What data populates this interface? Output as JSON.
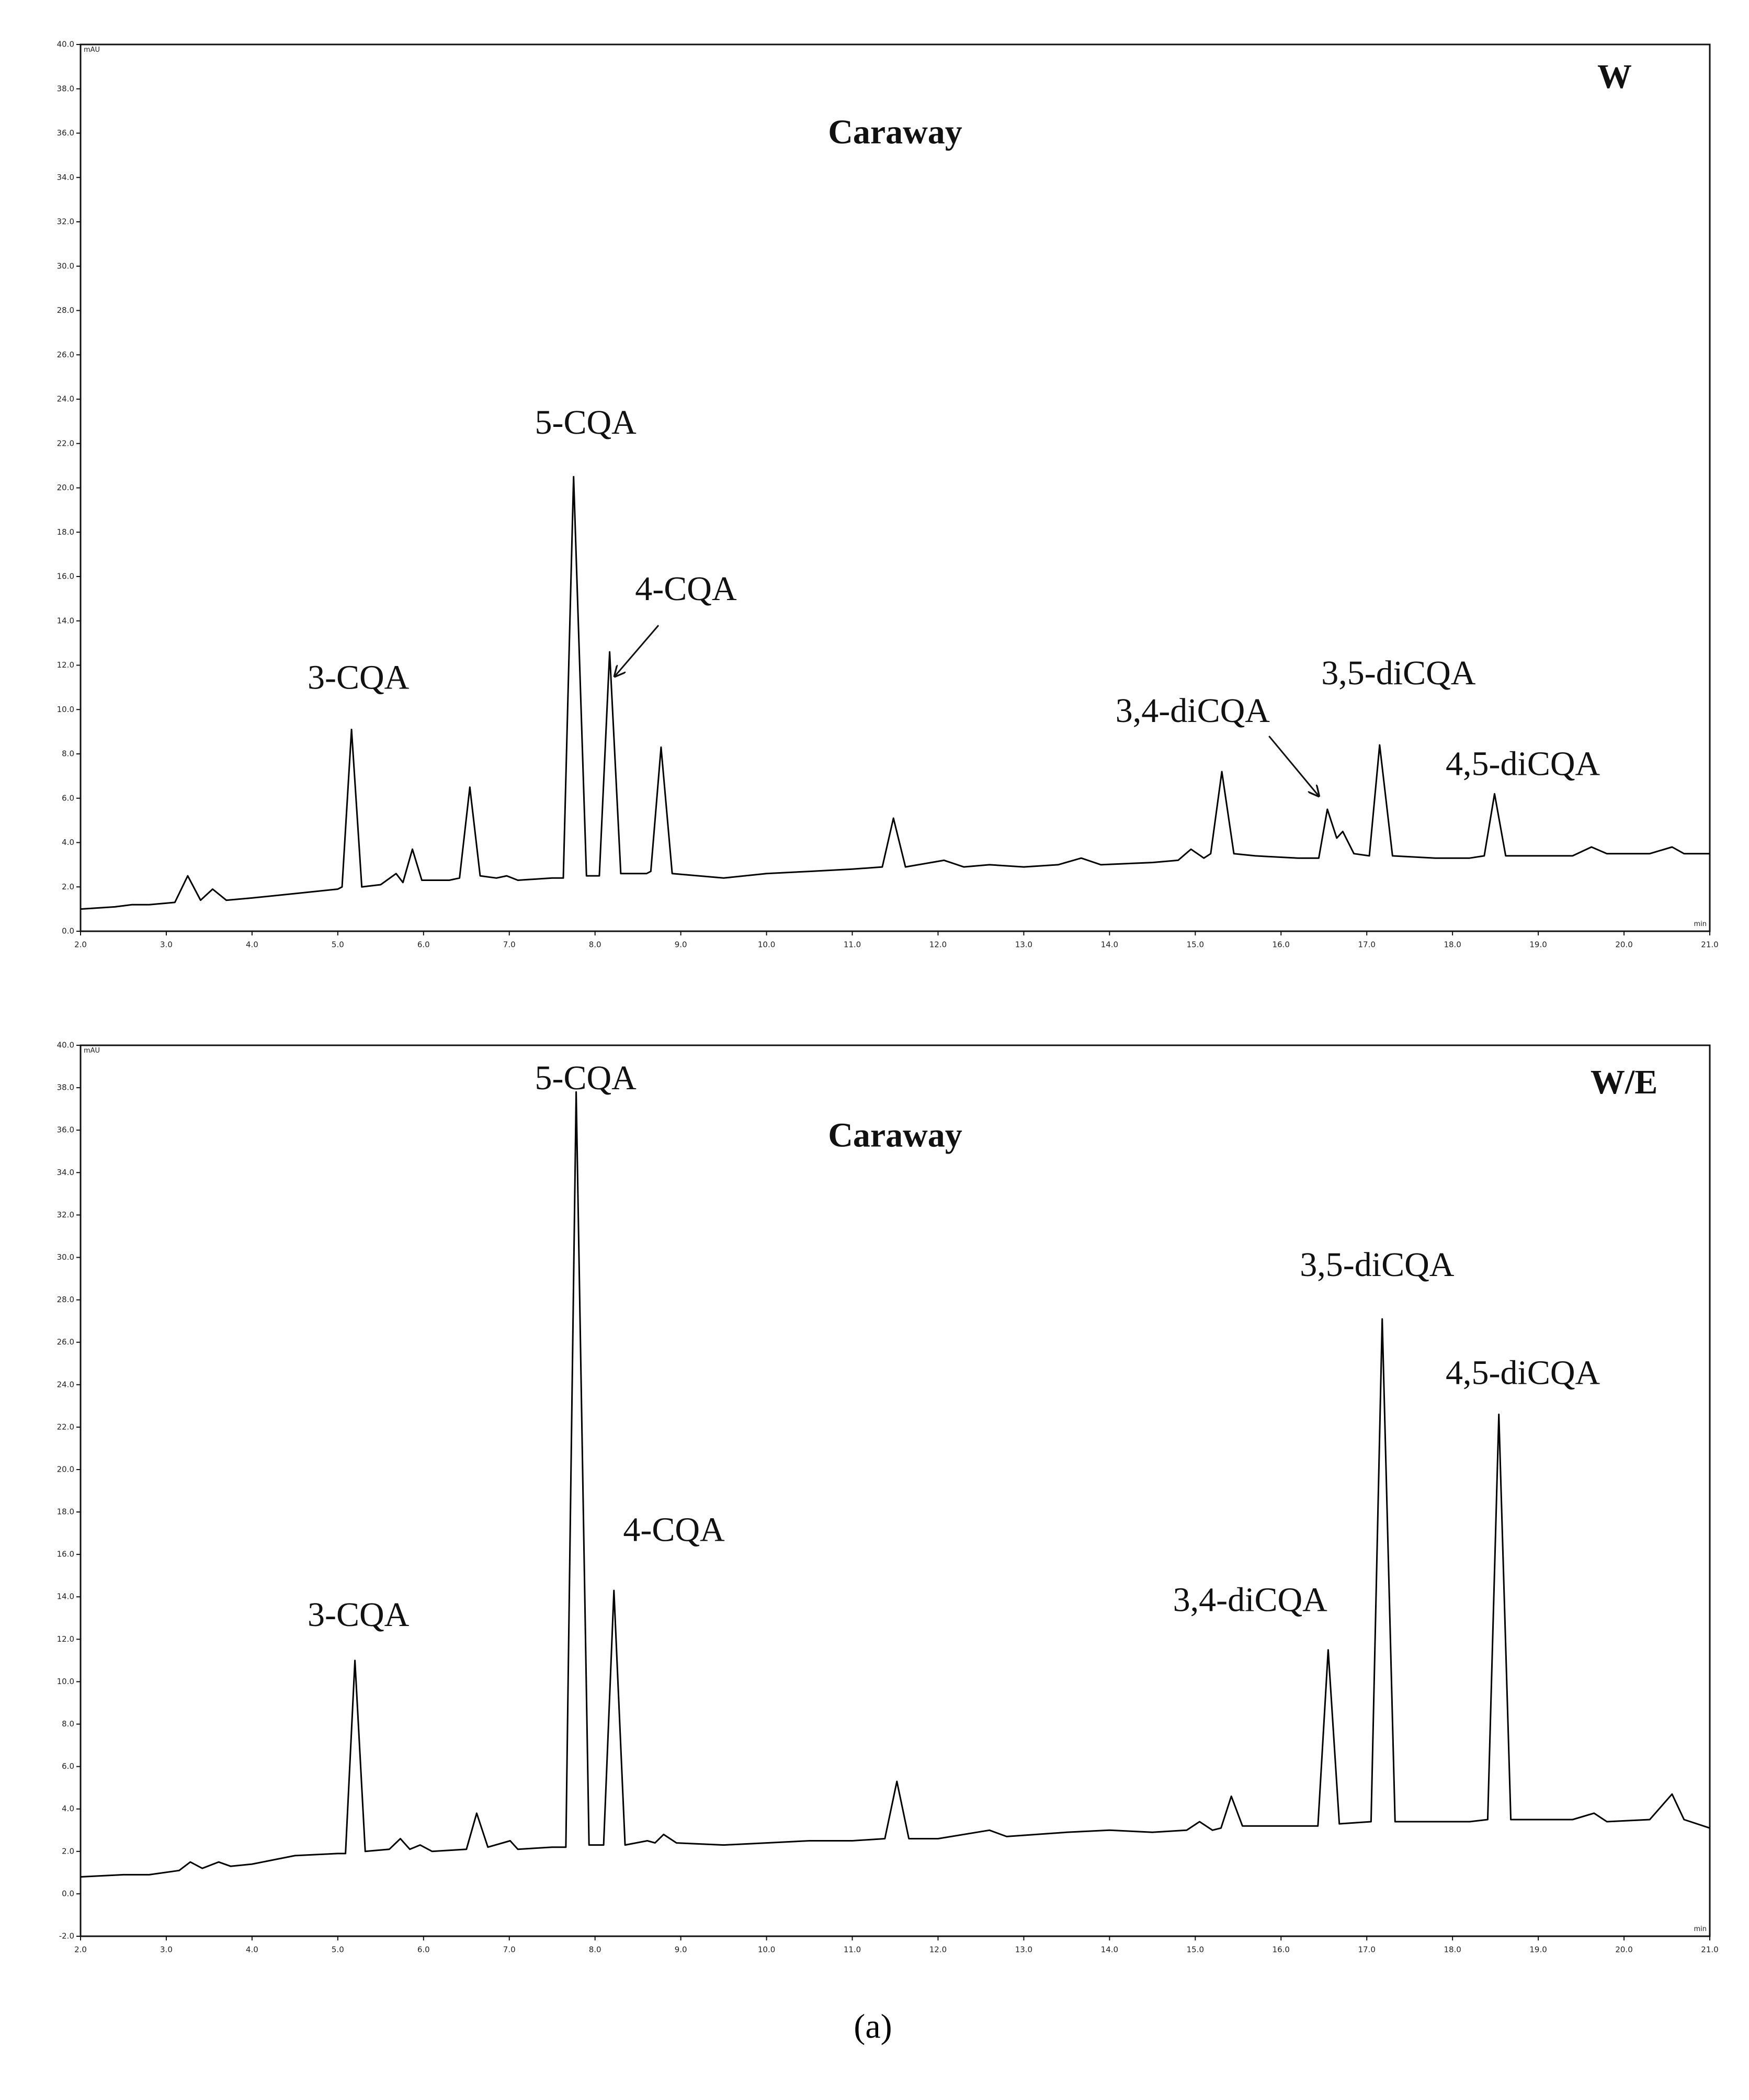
{
  "caption": "(a)",
  "chart_data": [
    {
      "type": "line",
      "color": "#000000",
      "ylabel": "mAU",
      "xlabel": "min",
      "xlim": [
        2,
        21
      ],
      "ylim": [
        0,
        40
      ],
      "xticks": [
        {
          "value": 2,
          "label": "2.0"
        },
        {
          "value": 3,
          "label": "3.0"
        },
        {
          "value": 4,
          "label": "4.0"
        },
        {
          "value": 5,
          "label": "5.0"
        },
        {
          "value": 6,
          "label": "6.0"
        },
        {
          "value": 7,
          "label": "7.0"
        },
        {
          "value": 8,
          "label": "8.0"
        },
        {
          "value": 9,
          "label": "9.0"
        },
        {
          "value": 10,
          "label": "10.0"
        },
        {
          "value": 11,
          "label": "11.0"
        },
        {
          "value": 12,
          "label": "12.0"
        },
        {
          "value": 13,
          "label": "13.0"
        },
        {
          "value": 14,
          "label": "14.0"
        },
        {
          "value": 15,
          "label": "15.0"
        },
        {
          "value": 16,
          "label": "16.0"
        },
        {
          "value": 17,
          "label": "17.0"
        },
        {
          "value": 18,
          "label": "18.0"
        },
        {
          "value": 19,
          "label": "19.0"
        },
        {
          "value": 20,
          "label": "20.0"
        },
        {
          "value": 21,
          "label": "21.0"
        }
      ],
      "yticks": [
        {
          "value": 0,
          "label": "0.0"
        },
        {
          "value": 2,
          "label": "2.0"
        },
        {
          "value": 4,
          "label": "4.0"
        },
        {
          "value": 6,
          "label": "6.0"
        },
        {
          "value": 8,
          "label": "8.0"
        },
        {
          "value": 10,
          "label": "10.0"
        },
        {
          "value": 12,
          "label": "12.0"
        },
        {
          "value": 14,
          "label": "14.0"
        },
        {
          "value": 16,
          "label": "16.0"
        },
        {
          "value": 18,
          "label": "18.0"
        },
        {
          "value": 20,
          "label": "20.0"
        },
        {
          "value": 22,
          "label": "22.0"
        },
        {
          "value": 24,
          "label": "24.0"
        },
        {
          "value": 26,
          "label": "26.0"
        },
        {
          "value": 28,
          "label": "28.0"
        },
        {
          "value": 30,
          "label": "30.0"
        },
        {
          "value": 32,
          "label": "32.0"
        },
        {
          "value": 34,
          "label": "34.0"
        },
        {
          "value": 36,
          "label": "36.0"
        },
        {
          "value": 38,
          "label": "38.0"
        },
        {
          "value": 40,
          "label": "40.0"
        }
      ],
      "x": [
        2.0,
        2.4,
        2.6,
        2.8,
        3.1,
        3.25,
        3.4,
        3.54,
        3.7,
        4.0,
        4.5,
        5.0,
        5.05,
        5.16,
        5.28,
        5.5,
        5.68,
        5.76,
        5.87,
        5.98,
        6.3,
        6.42,
        6.54,
        6.66,
        6.85,
        6.97,
        7.1,
        7.5,
        7.63,
        7.75,
        7.9,
        8.05,
        8.17,
        8.3,
        8.6,
        8.65,
        8.77,
        8.9,
        9.5,
        10.0,
        10.5,
        11.0,
        11.35,
        11.48,
        11.62,
        12.07,
        12.3,
        12.6,
        13.0,
        13.4,
        13.67,
        13.9,
        14.5,
        14.8,
        14.95,
        15.1,
        15.18,
        15.31,
        15.45,
        15.7,
        16.2,
        16.44,
        16.54,
        16.65,
        16.72,
        16.85,
        17.03,
        17.15,
        17.3,
        17.8,
        18.2,
        18.37,
        18.49,
        18.62,
        19.0,
        19.4,
        19.62,
        19.8,
        20.3,
        20.56,
        20.7,
        21.0
      ],
      "values": [
        1.0,
        1.1,
        1.2,
        1.2,
        1.3,
        2.5,
        1.4,
        1.9,
        1.4,
        1.5,
        1.7,
        1.9,
        2.0,
        9.1,
        2.0,
        2.1,
        2.6,
        2.2,
        3.7,
        2.3,
        2.3,
        2.4,
        6.5,
        2.5,
        2.4,
        2.5,
        2.3,
        2.4,
        2.4,
        20.5,
        2.5,
        2.5,
        12.6,
        2.6,
        2.6,
        2.7,
        8.3,
        2.6,
        2.4,
        2.6,
        2.7,
        2.8,
        2.9,
        5.1,
        2.9,
        3.2,
        2.9,
        3.0,
        2.9,
        3.0,
        3.3,
        3.0,
        3.1,
        3.2,
        3.7,
        3.3,
        3.5,
        7.2,
        3.5,
        3.4,
        3.3,
        3.3,
        5.5,
        4.2,
        4.5,
        3.5,
        3.4,
        8.4,
        3.4,
        3.3,
        3.3,
        3.4,
        6.2,
        3.4,
        3.4,
        3.4,
        3.8,
        3.5,
        3.5,
        3.8,
        3.5,
        3.5
      ],
      "annotations": [
        {
          "text": "W",
          "x": 19.89,
          "y": 38.4,
          "weight": "bold"
        },
        {
          "text": "Caraway",
          "x": 11.5,
          "y": 35.9,
          "weight": "bold"
        },
        {
          "text": "5-CQA",
          "x": 7.89,
          "y": 22.8
        },
        {
          "text": "4-CQA",
          "x": 9.06,
          "y": 15.3,
          "arrow_from": [
            8.74,
            13.8
          ],
          "arrow_to": [
            8.23,
            11.5
          ]
        },
        {
          "text": "3-CQA",
          "x": 5.24,
          "y": 11.3
        },
        {
          "text": "3,4-diCQA",
          "x": 14.97,
          "y": 9.8,
          "arrow_from": [
            15.86,
            8.8
          ],
          "arrow_to": [
            16.44,
            6.1
          ]
        },
        {
          "text": "3,5-diCQA",
          "x": 17.37,
          "y": 11.5
        },
        {
          "text": "4,5-diCQA",
          "x": 18.82,
          "y": 7.4
        }
      ]
    },
    {
      "type": "line",
      "color": "#000000",
      "ylabel": "mAU",
      "xlabel": "min",
      "xlim": [
        2,
        21
      ],
      "ylim": [
        -2,
        40
      ],
      "xticks": [
        {
          "value": 2,
          "label": "2.0"
        },
        {
          "value": 3,
          "label": "3.0"
        },
        {
          "value": 4,
          "label": "4.0"
        },
        {
          "value": 5,
          "label": "5.0"
        },
        {
          "value": 6,
          "label": "6.0"
        },
        {
          "value": 7,
          "label": "7.0"
        },
        {
          "value": 8,
          "label": "8.0"
        },
        {
          "value": 9,
          "label": "9.0"
        },
        {
          "value": 10,
          "label": "10.0"
        },
        {
          "value": 11,
          "label": "11.0"
        },
        {
          "value": 12,
          "label": "12.0"
        },
        {
          "value": 13,
          "label": "13.0"
        },
        {
          "value": 14,
          "label": "14.0"
        },
        {
          "value": 15,
          "label": "15.0"
        },
        {
          "value": 16,
          "label": "16.0"
        },
        {
          "value": 17,
          "label": "17.0"
        },
        {
          "value": 18,
          "label": "18.0"
        },
        {
          "value": 19,
          "label": "19.0"
        },
        {
          "value": 20,
          "label": "20.0"
        },
        {
          "value": 21,
          "label": "21.0"
        }
      ],
      "yticks": [
        {
          "value": -2,
          "label": "-2.0"
        },
        {
          "value": 0,
          "label": "0.0"
        },
        {
          "value": 2,
          "label": "2.0"
        },
        {
          "value": 4,
          "label": "4.0"
        },
        {
          "value": 6,
          "label": "6.0"
        },
        {
          "value": 8,
          "label": "8.0"
        },
        {
          "value": 10,
          "label": "10.0"
        },
        {
          "value": 12,
          "label": "12.0"
        },
        {
          "value": 14,
          "label": "14.0"
        },
        {
          "value": 16,
          "label": "16.0"
        },
        {
          "value": 18,
          "label": "18.0"
        },
        {
          "value": 20,
          "label": "20.0"
        },
        {
          "value": 22,
          "label": "22.0"
        },
        {
          "value": 24,
          "label": "24.0"
        },
        {
          "value": 26,
          "label": "26.0"
        },
        {
          "value": 28,
          "label": "28.0"
        },
        {
          "value": 30,
          "label": "30.0"
        },
        {
          "value": 32,
          "label": "32.0"
        },
        {
          "value": 34,
          "label": "34.0"
        },
        {
          "value": 36,
          "label": "36.0"
        },
        {
          "value": 38,
          "label": "38.0"
        },
        {
          "value": 40,
          "label": "40.0"
        }
      ],
      "x": [
        2.0,
        2.5,
        2.8,
        3.15,
        3.28,
        3.42,
        3.61,
        3.75,
        4.0,
        4.5,
        5.0,
        5.09,
        5.2,
        5.32,
        5.6,
        5.73,
        5.84,
        5.96,
        6.1,
        6.5,
        6.62,
        6.75,
        7.01,
        7.1,
        7.5,
        7.66,
        7.78,
        7.93,
        8.1,
        8.22,
        8.35,
        8.61,
        8.7,
        8.8,
        8.95,
        9.5,
        10.0,
        10.5,
        11.0,
        11.38,
        11.52,
        11.66,
        12.0,
        12.6,
        12.8,
        13.5,
        14.0,
        14.5,
        14.9,
        15.05,
        15.2,
        15.3,
        15.42,
        15.55,
        16.0,
        16.43,
        16.55,
        16.68,
        17.05,
        17.18,
        17.33,
        17.8,
        18.2,
        18.41,
        18.54,
        18.68,
        19.0,
        19.4,
        19.65,
        19.8,
        20.3,
        20.56,
        20.7,
        21.0
      ],
      "values": [
        0.8,
        0.9,
        0.9,
        1.1,
        1.5,
        1.2,
        1.5,
        1.3,
        1.4,
        1.8,
        1.9,
        1.9,
        11.0,
        2.0,
        2.1,
        2.6,
        2.1,
        2.3,
        2.0,
        2.1,
        3.8,
        2.2,
        2.5,
        2.1,
        2.2,
        2.2,
        37.8,
        2.3,
        2.3,
        14.3,
        2.3,
        2.5,
        2.4,
        2.8,
        2.4,
        2.3,
        2.4,
        2.5,
        2.5,
        2.6,
        5.3,
        2.6,
        2.6,
        3.0,
        2.7,
        2.9,
        3.0,
        2.9,
        3.0,
        3.4,
        3.0,
        3.1,
        4.6,
        3.2,
        3.2,
        3.2,
        11.5,
        3.3,
        3.4,
        27.1,
        3.4,
        3.4,
        3.4,
        3.5,
        22.6,
        3.5,
        3.5,
        3.5,
        3.8,
        3.4,
        3.5,
        4.7,
        3.5,
        3.1
      ],
      "annotations": [
        {
          "text": "W/E",
          "x": 20.0,
          "y": 38.1,
          "weight": "bold"
        },
        {
          "text": "Caraway",
          "x": 11.5,
          "y": 35.6,
          "weight": "bold"
        },
        {
          "text": "5-CQA",
          "x": 7.89,
          "y": 38.3
        },
        {
          "text": "4-CQA",
          "x": 8.92,
          "y": 17.0
        },
        {
          "text": "3-CQA",
          "x": 5.24,
          "y": 13.0
        },
        {
          "text": "3,4-diCQA",
          "x": 15.64,
          "y": 13.7
        },
        {
          "text": "3,5-diCQA",
          "x": 17.12,
          "y": 29.5
        },
        {
          "text": "4,5-diCQA",
          "x": 18.82,
          "y": 24.4
        }
      ]
    }
  ]
}
